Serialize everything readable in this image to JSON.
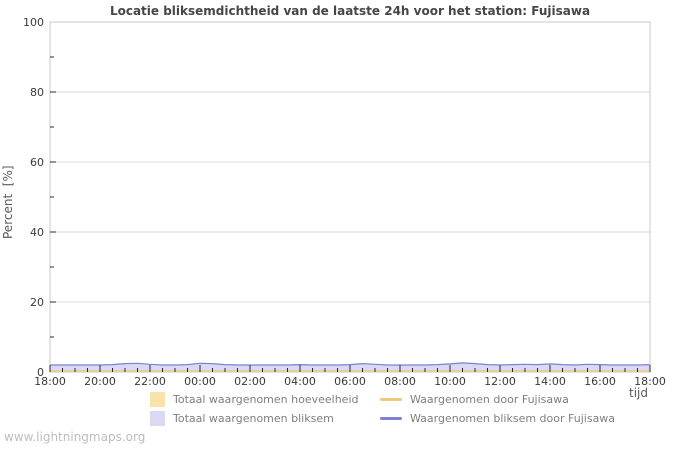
{
  "page": {
    "watermark": "www.lightningmaps.org"
  },
  "chart": {
    "title": "Locatie bliksemdichtheid van de laatste 24h voor het station: Fujisawa",
    "ylabel": "Percent  [%]",
    "xlabel": "tijd"
  },
  "legend": {
    "items": [
      {
        "label": "Totaal waargenomen hoeveelheid",
        "swatch": "fill",
        "color": "#fae2ad"
      },
      {
        "label": "Totaal waargenomen bliksem",
        "swatch": "fill",
        "color": "#d9d9f4"
      },
      {
        "label": "Waargenomen door Fujisawa",
        "swatch": "line",
        "color": "#f3c87e"
      },
      {
        "label": "Waargenomen bliksem door Fujisawa",
        "swatch": "line",
        "color": "#8080d2"
      }
    ]
  },
  "chart_data": {
    "type": "area",
    "title": "Locatie bliksemdichtheid van de laatste 24h voor het station: Fujisawa",
    "xlabel": "tijd",
    "ylabel": "Percent [%]",
    "ylim": [
      0,
      100
    ],
    "grid": true,
    "legend_position": "bottom",
    "x_start": "18:00",
    "x_end": "18:00",
    "x_step_minutes": 30,
    "x_tick_labels": [
      "18:00",
      "20:00",
      "22:00",
      "00:00",
      "02:00",
      "04:00",
      "06:00",
      "08:00",
      "10:00",
      "12:00",
      "14:00",
      "16:00",
      "18:00"
    ],
    "y_tick_values": [
      0,
      20,
      40,
      60,
      80,
      100
    ],
    "y_minor_values": [
      10,
      30,
      50,
      70,
      90
    ],
    "series": [
      {
        "name": "Totaal waargenomen hoeveelheid",
        "type": "area",
        "color": "#fae2ad",
        "values": [
          0.55,
          0.55,
          0.55,
          0.55,
          0.55,
          0.55,
          0.55,
          0.55,
          0.55,
          0.55,
          0.55,
          0.55,
          0.55,
          0.55,
          0.55,
          0.55,
          0.55,
          0.55,
          0.55,
          0.55,
          0.55,
          0.55,
          0.55,
          0.55,
          0.55,
          0.55,
          0.55,
          0.55,
          0.55,
          0.55,
          0.55,
          0.55,
          0.55,
          0.55,
          0.55,
          0.55,
          0.55,
          0.55,
          0.55,
          0.55,
          0.55,
          0.55,
          0.55,
          0.55,
          0.55,
          0.55,
          0.55,
          0.55,
          0.55
        ]
      },
      {
        "name": "Totaal waargenomen bliksem",
        "type": "area",
        "color": "#d9d9f4",
        "values": [
          2.0,
          2.0,
          2.0,
          2.0,
          2.0,
          2.1,
          2.4,
          2.5,
          2.2,
          2.0,
          2.0,
          2.1,
          2.5,
          2.4,
          2.1,
          2.0,
          2.0,
          2.0,
          2.0,
          2.0,
          2.1,
          2.0,
          2.0,
          2.0,
          2.1,
          2.4,
          2.2,
          2.0,
          2.0,
          2.0,
          2.0,
          2.1,
          2.3,
          2.6,
          2.4,
          2.1,
          2.0,
          2.1,
          2.2,
          2.1,
          2.3,
          2.1,
          2.0,
          2.2,
          2.1,
          2.0,
          2.0,
          2.0,
          2.1
        ]
      },
      {
        "name": "Waargenomen door Fujisawa",
        "type": "line",
        "color": "#f3c87e",
        "values": [
          0.35,
          0.35,
          0.35,
          0.35,
          0.35,
          0.35,
          0.35,
          0.35,
          0.35,
          0.35,
          0.35,
          0.35,
          0.35,
          0.35,
          0.35,
          0.35,
          0.35,
          0.35,
          0.35,
          0.35,
          0.35,
          0.35,
          0.35,
          0.35,
          0.35,
          0.35,
          0.35,
          0.35,
          0.35,
          0.35,
          0.35,
          0.35,
          0.35,
          0.35,
          0.35,
          0.35,
          0.35,
          0.35,
          0.35,
          0.35,
          0.35,
          0.35,
          0.35,
          0.35,
          0.35,
          0.35,
          0.35,
          0.35,
          0.35
        ]
      },
      {
        "name": "Waargenomen bliksem door Fujisawa",
        "type": "line",
        "color": "#8080d2",
        "values": [
          2.0,
          2.0,
          2.0,
          2.0,
          2.0,
          2.1,
          2.4,
          2.5,
          2.2,
          2.0,
          2.0,
          2.1,
          2.5,
          2.4,
          2.1,
          2.0,
          2.0,
          2.0,
          2.0,
          2.0,
          2.1,
          2.0,
          2.0,
          2.0,
          2.1,
          2.4,
          2.2,
          2.0,
          2.0,
          2.0,
          2.0,
          2.1,
          2.3,
          2.6,
          2.4,
          2.1,
          2.0,
          2.1,
          2.2,
          2.1,
          2.3,
          2.1,
          2.0,
          2.2,
          2.1,
          2.0,
          2.0,
          2.0,
          2.1
        ]
      }
    ]
  }
}
